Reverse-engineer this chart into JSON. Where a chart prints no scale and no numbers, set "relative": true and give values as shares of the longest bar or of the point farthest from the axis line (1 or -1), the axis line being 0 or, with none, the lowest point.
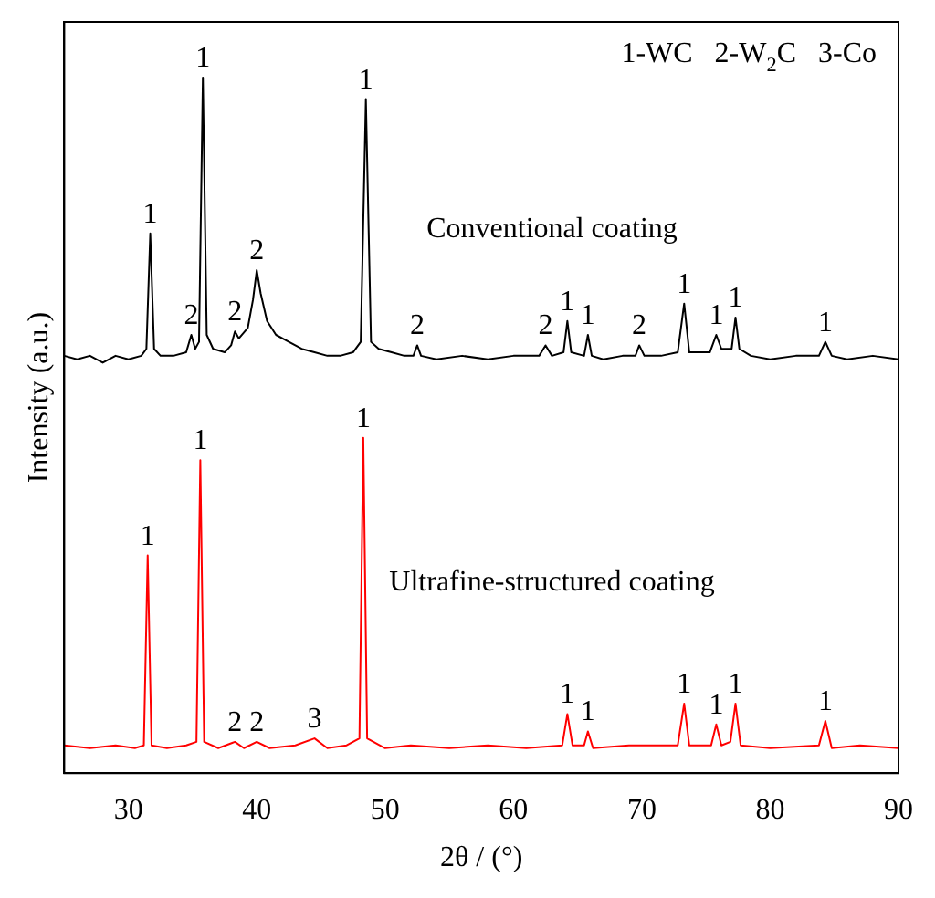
{
  "chart_data": {
    "type": "line",
    "relative": true,
    "xlabel": "2θ / (°)",
    "ylabel": "Intensity (a.u.)",
    "xlim": [
      25,
      90
    ],
    "xticks": [
      30,
      40,
      50,
      60,
      70,
      80,
      90
    ],
    "grid": false,
    "legend": false,
    "marker": "none",
    "line_style": "solid",
    "series": [
      {
        "name": "Conventional coating",
        "color": "#000000",
        "x": [
          25,
          26,
          27,
          28,
          29,
          30,
          31,
          31.4,
          31.7,
          32.0,
          32.5,
          33.5,
          34.5,
          34.9,
          35.2,
          35.5,
          35.8,
          36.1,
          36.6,
          37.5,
          38.0,
          38.3,
          38.6,
          39.3,
          39.7,
          40.0,
          40.3,
          40.8,
          41.5,
          42.5,
          43.5,
          44.5,
          45.5,
          46.5,
          47.5,
          48.1,
          48.5,
          48.9,
          49.5,
          50.5,
          51.5,
          52.2,
          52.5,
          52.8,
          54,
          56,
          58,
          60,
          62,
          62.5,
          63,
          63.9,
          64.2,
          64.5,
          65.5,
          65.8,
          66.1,
          67,
          68.5,
          69.5,
          69.8,
          70.2,
          71.5,
          72.8,
          73.3,
          73.7,
          75.3,
          75.8,
          76.2,
          77.0,
          77.3,
          77.6,
          78.5,
          80,
          82,
          83.8,
          84.3,
          84.8,
          86,
          88,
          90
        ],
        "values": [
          0.6,
          0.595,
          0.6,
          0.59,
          0.6,
          0.595,
          0.6,
          0.61,
          0.776,
          0.61,
          0.6,
          0.6,
          0.605,
          0.63,
          0.61,
          0.62,
          1.0,
          0.63,
          0.61,
          0.605,
          0.615,
          0.635,
          0.625,
          0.64,
          0.68,
          0.723,
          0.69,
          0.65,
          0.63,
          0.62,
          0.61,
          0.605,
          0.6,
          0.6,
          0.605,
          0.62,
          0.969,
          0.62,
          0.61,
          0.605,
          0.6,
          0.6,
          0.615,
          0.6,
          0.595,
          0.6,
          0.595,
          0.6,
          0.6,
          0.615,
          0.6,
          0.605,
          0.65,
          0.605,
          0.6,
          0.63,
          0.6,
          0.595,
          0.6,
          0.6,
          0.615,
          0.6,
          0.6,
          0.605,
          0.675,
          0.605,
          0.605,
          0.63,
          0.61,
          0.61,
          0.655,
          0.61,
          0.6,
          0.595,
          0.6,
          0.6,
          0.62,
          0.6,
          0.595,
          0.6,
          0.595
        ]
      },
      {
        "name": "Ultrafine-structured coating",
        "color": "#ff0000",
        "x": [
          25,
          27,
          29,
          30.5,
          31.2,
          31.5,
          31.8,
          33,
          34.5,
          35.3,
          35.6,
          35.9,
          37,
          38.3,
          39,
          40,
          41,
          43,
          44.5,
          45.5,
          47,
          48,
          48.3,
          48.6,
          50,
          52,
          55,
          58,
          61,
          63.8,
          64.2,
          64.6,
          65.5,
          65.8,
          66.2,
          69,
          72.8,
          73.3,
          73.7,
          75.4,
          75.8,
          76.2,
          76.9,
          77.3,
          77.7,
          80,
          83.8,
          84.3,
          84.8,
          87,
          90
        ],
        "values": [
          0.04,
          0.036,
          0.04,
          0.036,
          0.04,
          0.313,
          0.04,
          0.036,
          0.04,
          0.045,
          0.45,
          0.045,
          0.036,
          0.045,
          0.036,
          0.045,
          0.036,
          0.04,
          0.05,
          0.036,
          0.04,
          0.05,
          0.482,
          0.05,
          0.036,
          0.04,
          0.036,
          0.04,
          0.036,
          0.04,
          0.085,
          0.04,
          0.04,
          0.06,
          0.036,
          0.04,
          0.04,
          0.1,
          0.04,
          0.04,
          0.07,
          0.04,
          0.045,
          0.1,
          0.04,
          0.036,
          0.04,
          0.075,
          0.036,
          0.04,
          0.036
        ]
      }
    ],
    "annotations": [
      "1-WC   2-W$_{2}$C   3-Co",
      {
        "text": "1",
        "x": 31.7,
        "y": 0.776
      },
      {
        "text": "1",
        "x": 35.8,
        "y": 1.0
      },
      {
        "text": "2",
        "x": 34.9,
        "y": 0.63
      },
      {
        "text": "2",
        "x": 38.3,
        "y": 0.635
      },
      {
        "text": "2",
        "x": 40.0,
        "y": 0.723
      },
      {
        "text": "1",
        "x": 48.5,
        "y": 0.969
      },
      {
        "text": "2",
        "x": 52.5,
        "y": 0.615
      },
      {
        "text": "2",
        "x": 62.5,
        "y": 0.615
      },
      {
        "text": "1",
        "x": 64.2,
        "y": 0.65
      },
      {
        "text": "1",
        "x": 65.8,
        "y": 0.63
      },
      {
        "text": "2",
        "x": 69.8,
        "y": 0.615
      },
      {
        "text": "1",
        "x": 73.3,
        "y": 0.675
      },
      {
        "text": "1",
        "x": 75.8,
        "y": 0.63
      },
      {
        "text": "1",
        "x": 77.3,
        "y": 0.655
      },
      {
        "text": "1",
        "x": 84.3,
        "y": 0.62
      },
      {
        "text": "1",
        "x": 31.5,
        "y": 0.313
      },
      {
        "text": "1",
        "x": 35.6,
        "y": 0.45
      },
      {
        "text": "2",
        "x": 38.3,
        "y": 0.045
      },
      {
        "text": "2",
        "x": 40.0,
        "y": 0.045
      },
      {
        "text": "3",
        "x": 44.5,
        "y": 0.05
      },
      {
        "text": "1",
        "x": 48.3,
        "y": 0.482
      },
      {
        "text": "1",
        "x": 64.2,
        "y": 0.085
      },
      {
        "text": "1",
        "x": 65.8,
        "y": 0.06
      },
      {
        "text": "1",
        "x": 73.3,
        "y": 0.1
      },
      {
        "text": "1",
        "x": 75.8,
        "y": 0.07
      },
      {
        "text": "1",
        "x": 77.3,
        "y": 0.1
      },
      {
        "text": "1",
        "x": 84.3,
        "y": 0.075
      }
    ]
  }
}
